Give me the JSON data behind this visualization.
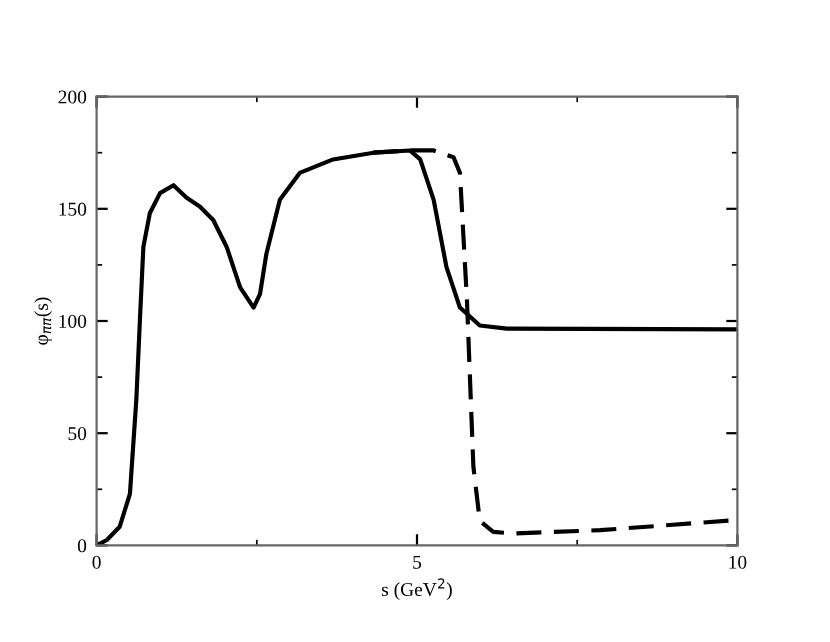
{
  "chart_data": {
    "type": "line",
    "xlabel": "s (GeV$^{2}$)",
    "ylabel": "φ$_{ππ}$(s)",
    "xlim": [
      0,
      10
    ],
    "ylim": [
      0,
      200
    ],
    "xticks": [
      0,
      5,
      10
    ],
    "yticks": [
      0,
      50,
      100,
      150,
      200
    ],
    "grid": false,
    "legend": false,
    "series": [
      {
        "color": "#000000",
        "line_style": "solid",
        "x": [
          0,
          0.16,
          0.36,
          0.52,
          0.62,
          0.68,
          0.73,
          0.83,
          0.99,
          1.2,
          1.4,
          1.61,
          1.82,
          2.03,
          2.24,
          2.45,
          2.55,
          2.65,
          2.86,
          3.17,
          3.69,
          4.32,
          4.89,
          5.05,
          5.26,
          5.46,
          5.67,
          5.98,
          6.4,
          10
        ],
        "values": [
          0,
          2.4,
          8.3,
          23,
          65,
          103,
          133,
          148,
          157,
          160.5,
          155,
          151,
          145,
          133,
          115,
          106,
          112,
          130,
          154,
          166,
          172,
          175,
          176,
          172,
          154,
          124,
          106,
          98,
          96.6,
          96.3
        ]
      },
      {
        "color": "#000000",
        "line_style": "dashed",
        "x": [
          4.32,
          4.89,
          5.26,
          5.57,
          5.67,
          5.78,
          5.88,
          5.98,
          6.19,
          6.5,
          7.86,
          10
        ],
        "values": [
          175,
          176,
          176,
          173,
          166,
          109,
          35,
          11,
          6,
          5.3,
          6.8,
          11.3
        ]
      }
    ]
  }
}
